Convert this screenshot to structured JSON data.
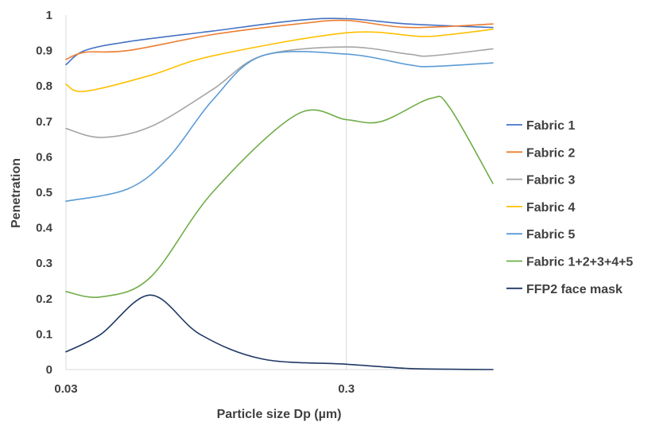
{
  "chart_data": {
    "type": "line",
    "xlabel": "Particle size Dp (µm)",
    "ylabel": "Penetration",
    "x_scale": "log",
    "xlim": [
      0.03,
      1.0
    ],
    "ylim": [
      0,
      1
    ],
    "x_ticks": [
      0.03,
      0.3
    ],
    "x_tick_labels": [
      "0.03",
      "0.3"
    ],
    "y_ticks": [
      0,
      0.1,
      0.2,
      0.3,
      0.4,
      0.5,
      0.6,
      0.7,
      0.8,
      0.9,
      1
    ],
    "y_tick_labels": [
      "0",
      "0.1",
      "0.2",
      "0.3",
      "0.4",
      "0.5",
      "0.6",
      "0.7",
      "0.8",
      "0.9",
      "1"
    ],
    "grid": "vertical",
    "legend_position": "right",
    "series": [
      {
        "name": "Fabric 1",
        "color": "#4472C4",
        "x": [
          0.03,
          0.035,
          0.05,
          0.1,
          0.2,
          0.3,
          0.5,
          1.0
        ],
        "y": [
          0.86,
          0.9,
          0.925,
          0.955,
          0.985,
          0.99,
          0.975,
          0.965
        ]
      },
      {
        "name": "Fabric 2",
        "color": "#ED7D31",
        "x": [
          0.03,
          0.035,
          0.05,
          0.1,
          0.2,
          0.3,
          0.5,
          1.0
        ],
        "y": [
          0.875,
          0.895,
          0.9,
          0.945,
          0.975,
          0.985,
          0.965,
          0.975
        ]
      },
      {
        "name": "Fabric 3",
        "color": "#A5A5A5",
        "x": [
          0.03,
          0.04,
          0.06,
          0.1,
          0.15,
          0.3,
          0.5,
          0.6,
          1.0
        ],
        "y": [
          0.68,
          0.655,
          0.685,
          0.79,
          0.885,
          0.91,
          0.89,
          0.885,
          0.905
        ]
      },
      {
        "name": "Fabric 4",
        "color": "#FFC000",
        "x": [
          0.03,
          0.035,
          0.06,
          0.1,
          0.3,
          0.55,
          0.7,
          1.0
        ],
        "y": [
          0.805,
          0.785,
          0.83,
          0.885,
          0.95,
          0.94,
          0.945,
          0.96
        ]
      },
      {
        "name": "Fabric 5",
        "color": "#5B9BD5",
        "x": [
          0.03,
          0.05,
          0.07,
          0.1,
          0.15,
          0.3,
          0.5,
          0.6,
          1.0
        ],
        "y": [
          0.475,
          0.51,
          0.6,
          0.76,
          0.885,
          0.89,
          0.86,
          0.855,
          0.865
        ]
      },
      {
        "name": "Fabric 1+2+3+4+5",
        "color": "#70AD47",
        "x": [
          0.03,
          0.04,
          0.06,
          0.1,
          0.2,
          0.3,
          0.4,
          0.6,
          0.7,
          1.0
        ],
        "y": [
          0.22,
          0.205,
          0.26,
          0.5,
          0.72,
          0.705,
          0.7,
          0.765,
          0.74,
          0.525
        ]
      },
      {
        "name": "FFP2 face mask",
        "color": "#1F3864",
        "x": [
          0.03,
          0.04,
          0.06,
          0.09,
          0.15,
          0.3,
          0.5,
          0.7,
          1.0
        ],
        "y": [
          0.05,
          0.1,
          0.21,
          0.1,
          0.03,
          0.015,
          0.003,
          0.001,
          0.0
        ]
      }
    ]
  }
}
